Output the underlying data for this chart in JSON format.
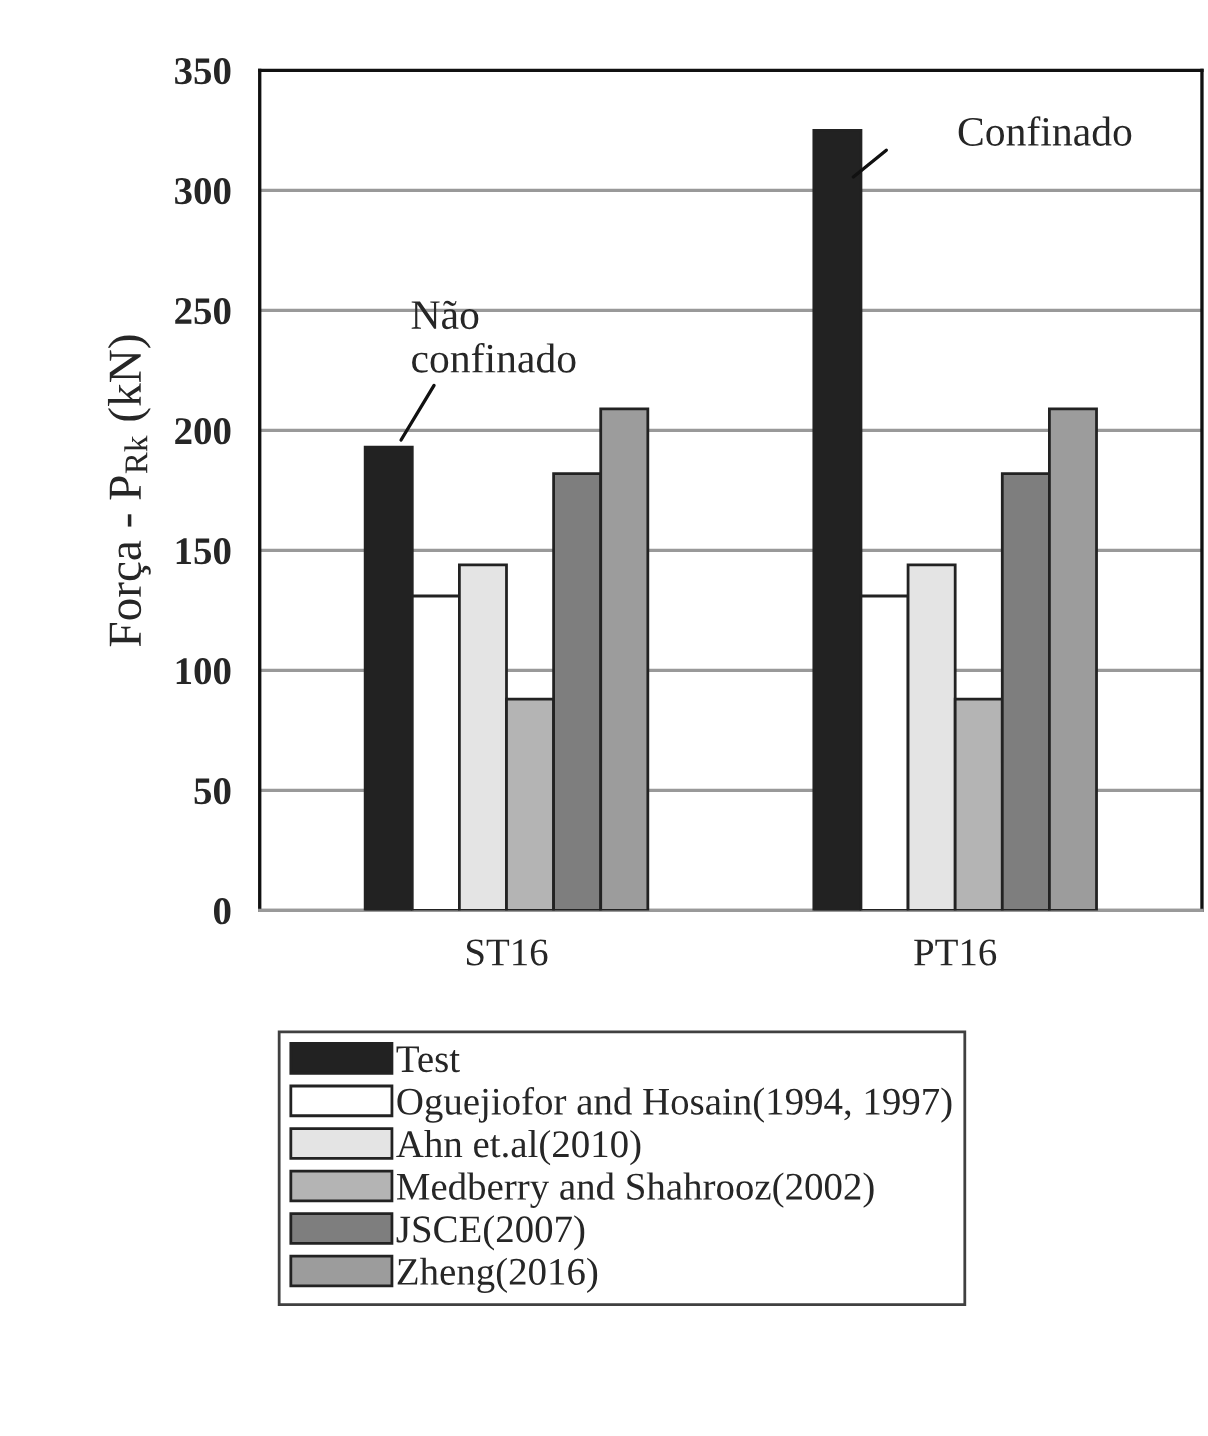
{
  "chart_data": {
    "type": "bar",
    "ylabel": "Força - P$_{Rk}$ (kN)",
    "categories": [
      "ST16",
      "PT16"
    ],
    "series": [
      {
        "name": "Test",
        "color": "#222222",
        "values": [
          193,
          325
        ]
      },
      {
        "name": "Oguejiofor and Hosain(1994, 1997)",
        "color": "#ffffff",
        "values": [
          131,
          131
        ]
      },
      {
        "name": "Ahn et.al(2010)",
        "color": "#e4e4e4",
        "values": [
          144,
          144
        ]
      },
      {
        "name": "Medberry and Shahrooz(2002)",
        "color": "#b4b4b4",
        "values": [
          88,
          88
        ]
      },
      {
        "name": "JSCE(2007)",
        "color": "#7e7e7e",
        "values": [
          182,
          182
        ]
      },
      {
        "name": "Zheng(2016)",
        "color": "#9c9c9c",
        "values": [
          209,
          209
        ]
      }
    ],
    "ylim": [
      0,
      350
    ],
    "yticks": [
      0,
      50,
      100,
      150,
      200,
      250,
      300,
      350
    ],
    "grid": "y",
    "legend": "bottom",
    "annotations": [
      "Não\nconfinado",
      "Confinado"
    ]
  }
}
